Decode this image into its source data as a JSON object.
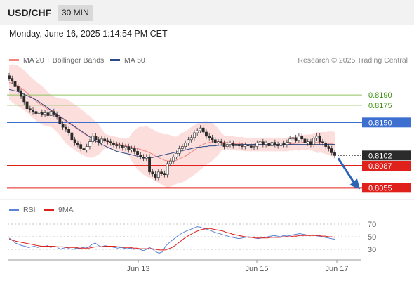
{
  "header": {
    "symbol": "USD/CHF",
    "timeframe": "30 MIN"
  },
  "datetime": "Monday, June 16, 2025 1:14:54 PM CET",
  "legend": {
    "ma20": "MA 20 + Bollinger Bands",
    "ma20_color": "#f4857f",
    "ma50": "MA 50",
    "ma50_color": "#2b4a86",
    "rsi": "RSI",
    "rsi_color": "#5b83d6",
    "ma9": "9MA",
    "ma9_color": "#e0201b"
  },
  "credit": "Research © 2025 Trading Central",
  "chart_data": [
    {
      "type": "candlestick",
      "title": "USD/CHF",
      "ylim": [
        0.804,
        0.823
      ],
      "levels": [
        {
          "value": 0.819,
          "label": "0.8190",
          "style": "target",
          "color": "#8fc15f",
          "text_color": "#3e8f12"
        },
        {
          "value": 0.8175,
          "label": "0.8175",
          "style": "target",
          "color": "#8fc15f",
          "text_color": "#3e8f12"
        },
        {
          "value": 0.815,
          "label": "0.8150",
          "style": "pivot",
          "color": "#3d6fd1"
        },
        {
          "value": 0.8102,
          "label": "0.8102",
          "style": "last_price",
          "color": "#2b2b2b"
        },
        {
          "value": 0.8087,
          "label": "0.8087",
          "style": "support",
          "color": "#e0201b"
        },
        {
          "value": 0.8055,
          "label": "0.8055",
          "style": "support",
          "color": "#e0201b"
        }
      ],
      "x_ticks": [
        "Jun 13",
        "Jun 15",
        "Jun 17"
      ],
      "forecast": {
        "direction": "down",
        "from": 0.8102,
        "to": 0.8055,
        "color": "#2c64b4"
      },
      "close": [
        0.8214,
        0.821,
        0.8202,
        0.8195,
        0.8188,
        0.818,
        0.817,
        0.8168,
        0.8166,
        0.8163,
        0.8165,
        0.8162,
        0.8164,
        0.816,
        0.8166,
        0.8162,
        0.8158,
        0.8148,
        0.8143,
        0.814,
        0.8135,
        0.8125,
        0.812,
        0.8118,
        0.8112,
        0.811,
        0.8115,
        0.8122,
        0.813,
        0.8125,
        0.812,
        0.8126,
        0.8124,
        0.8122,
        0.812,
        0.8118,
        0.8116,
        0.8117,
        0.8113,
        0.8115,
        0.811,
        0.8112,
        0.8108,
        0.8103,
        0.81,
        0.8098,
        0.81,
        0.8078,
        0.8075,
        0.807,
        0.8078,
        0.8076,
        0.8074,
        0.809,
        0.8094,
        0.81,
        0.8105,
        0.8112,
        0.8115,
        0.812,
        0.8125,
        0.8128,
        0.8135,
        0.8138,
        0.8142,
        0.8136,
        0.813,
        0.8128,
        0.8125,
        0.812,
        0.8122,
        0.812,
        0.8115,
        0.8118,
        0.812,
        0.8116,
        0.8118,
        0.8116,
        0.8115,
        0.8117,
        0.8116,
        0.8114,
        0.8115,
        0.812,
        0.8122,
        0.8118,
        0.812,
        0.8116,
        0.8121,
        0.8118,
        0.8116,
        0.812,
        0.8118,
        0.8121,
        0.8126,
        0.8128,
        0.8124,
        0.813,
        0.8126,
        0.812,
        0.8122,
        0.8118,
        0.8127,
        0.813,
        0.8122,
        0.812,
        0.8115,
        0.8112,
        0.8106,
        0.8102
      ],
      "ma20": [
        0.8208,
        0.8207,
        0.8205,
        0.8203,
        0.82,
        0.8197,
        0.8193,
        0.8189,
        0.8185,
        0.8181,
        0.8178,
        0.8175,
        0.8172,
        0.8169,
        0.8167,
        0.8164,
        0.8161,
        0.8158,
        0.8155,
        0.8152,
        0.8149,
        0.8146,
        0.8143,
        0.814,
        0.8137,
        0.8134,
        0.8131,
        0.8129,
        0.8127,
        0.8126,
        0.8125,
        0.8124,
        0.8123,
        0.8122,
        0.8121,
        0.812,
        0.8119,
        0.8118,
        0.8117,
        0.8116,
        0.8115,
        0.8114,
        0.8113,
        0.8112,
        0.8111,
        0.8109,
        0.8108,
        0.8106,
        0.8104,
        0.8101,
        0.8099,
        0.8097,
        0.8095,
        0.8094,
        0.8094,
        0.8094,
        0.8095,
        0.8097,
        0.8099,
        0.8101,
        0.8104,
        0.8107,
        0.811,
        0.8113,
        0.8116,
        0.8118,
        0.812,
        0.8121,
        0.8122,
        0.8122,
        0.8122,
        0.8122,
        0.8121,
        0.8121,
        0.812,
        0.812,
        0.8119,
        0.8119,
        0.8119,
        0.8118,
        0.8118,
        0.8118,
        0.8118,
        0.8118,
        0.8118,
        0.8118,
        0.8118,
        0.8118,
        0.8118,
        0.8118,
        0.8118,
        0.8118,
        0.8118,
        0.8118,
        0.8119,
        0.8119,
        0.812,
        0.812,
        0.8121,
        0.8121,
        0.8121,
        0.8121,
        0.8121,
        0.8121,
        0.8121,
        0.8121,
        0.812,
        0.812,
        0.8119,
        0.8118
      ],
      "ma50": [
        0.8198,
        0.8197,
        0.8196,
        0.8195,
        0.8193,
        0.8191,
        0.8189,
        0.8187,
        0.8185,
        0.8183,
        0.818,
        0.8177,
        0.8174,
        0.8171,
        0.8168,
        0.8165,
        0.8162,
        0.8159,
        0.8156,
        0.8153,
        0.815,
        0.8147,
        0.8144,
        0.8141,
        0.8138,
        0.8135,
        0.8132,
        0.8129,
        0.8126,
        0.8123,
        0.8121,
        0.8118,
        0.8116,
        0.8114,
        0.8112,
        0.811,
        0.8108,
        0.8107,
        0.8106,
        0.8105,
        0.8104,
        0.8103,
        0.8102,
        0.8101,
        0.81,
        0.8099,
        0.8099,
        0.8099,
        0.8099,
        0.81,
        0.8101,
        0.8102,
        0.8103,
        0.8104,
        0.8105,
        0.8106,
        0.8107,
        0.8108,
        0.8109,
        0.811,
        0.8111,
        0.8112,
        0.8113,
        0.8114,
        0.8114,
        0.8115,
        0.8115,
        0.8116,
        0.8116,
        0.8116,
        0.8117,
        0.8117,
        0.8117,
        0.8117,
        0.8117,
        0.8118,
        0.8118,
        0.8118,
        0.8118,
        0.8118,
        0.8118,
        0.8118,
        0.8118,
        0.8118,
        0.8118,
        0.8118,
        0.8118,
        0.8118,
        0.8118,
        0.8118,
        0.8118,
        0.8118,
        0.8118,
        0.8118,
        0.8118,
        0.8118,
        0.8118,
        0.8118,
        0.8118,
        0.8118,
        0.8118,
        0.8118,
        0.8118,
        0.8118,
        0.8118,
        0.8118,
        0.8118,
        0.8118,
        0.8118,
        0.8118
      ]
    },
    {
      "type": "line",
      "title": "RSI",
      "ylim": [
        20,
        80
      ],
      "y_ticks": [
        70,
        50,
        30
      ],
      "series": [
        {
          "name": "RSI",
          "values": [
            48,
            44,
            40,
            38,
            36,
            35,
            33,
            34,
            35,
            33,
            35,
            34,
            36,
            33,
            35,
            34,
            30,
            32,
            33,
            31,
            30,
            32,
            31,
            33,
            32,
            34,
            38,
            40,
            36,
            34,
            36,
            35,
            34,
            33,
            32,
            33,
            32,
            31,
            32,
            30,
            31,
            30,
            28,
            30,
            33,
            30,
            26,
            24,
            26,
            35,
            40,
            44,
            48,
            52,
            55,
            58,
            60,
            62,
            64,
            66,
            65,
            63,
            62,
            60,
            58,
            56,
            55,
            53,
            52,
            50,
            49,
            48,
            47,
            48,
            49,
            50,
            49,
            48,
            47,
            48,
            49,
            50,
            51,
            52,
            51,
            50,
            52,
            51,
            52,
            53,
            54,
            55,
            54,
            53,
            52,
            53,
            52,
            51,
            50,
            49,
            48,
            47,
            46
          ]
        },
        {
          "name": "9MA",
          "values": [
            46,
            45,
            43,
            42,
            41,
            40,
            39,
            38,
            37,
            36,
            35,
            35,
            35,
            35,
            35,
            34,
            34,
            34,
            33,
            33,
            33,
            33,
            32,
            32,
            32,
            32,
            33,
            34,
            34,
            34,
            35,
            35,
            35,
            35,
            34,
            34,
            33,
            33,
            33,
            32,
            32,
            31,
            31,
            31,
            31,
            31,
            30,
            29,
            29,
            29,
            31,
            33,
            36,
            40,
            44,
            48,
            51,
            54,
            57,
            59,
            61,
            62,
            63,
            63,
            62,
            61,
            60,
            59,
            57,
            56,
            54,
            53,
            52,
            51,
            50,
            49,
            49,
            48,
            48,
            48,
            48,
            48,
            49,
            49,
            49,
            49,
            50,
            50,
            50,
            51,
            51,
            52,
            52,
            52,
            52,
            52,
            52,
            52,
            51,
            51,
            50,
            50,
            49
          ]
        }
      ],
      "x_ticks": [
        "Jun 13",
        "Jun 15",
        "Jun 17"
      ]
    }
  ]
}
